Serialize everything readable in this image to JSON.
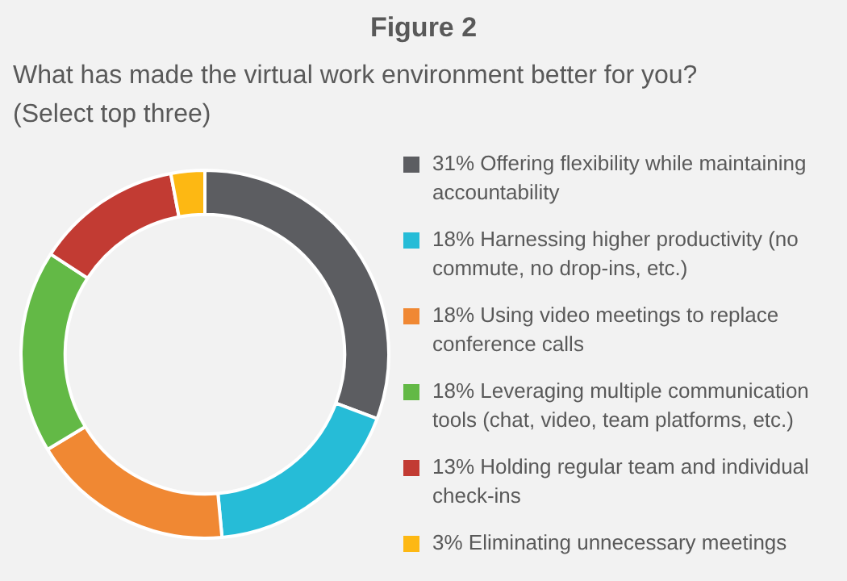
{
  "chart_data": {
    "type": "donut",
    "title": "Figure 2",
    "subtitle": "What has made the virtual work environment better for you? (Select top three)",
    "categories": [
      "Offering flexibility while maintaining accountability",
      "Harnessing higher productivity (no commute, no drop-ins, etc.)",
      "Using video meetings to replace conference calls",
      "Leveraging multiple communication tools (chat, video, team platforms, etc.)",
      "Holding regular team and individual check-ins",
      "Eliminating unnecessary meetings"
    ],
    "values": [
      31,
      18,
      18,
      18,
      13,
      3
    ],
    "value_labels": [
      "31%",
      "18%",
      "18%",
      "18%",
      "13%",
      "3%"
    ],
    "colors": [
      "#5c5d61",
      "#26bcd7",
      "#f08833",
      "#63b946",
      "#c23b33",
      "#fdb813"
    ],
    "legend": "right"
  }
}
